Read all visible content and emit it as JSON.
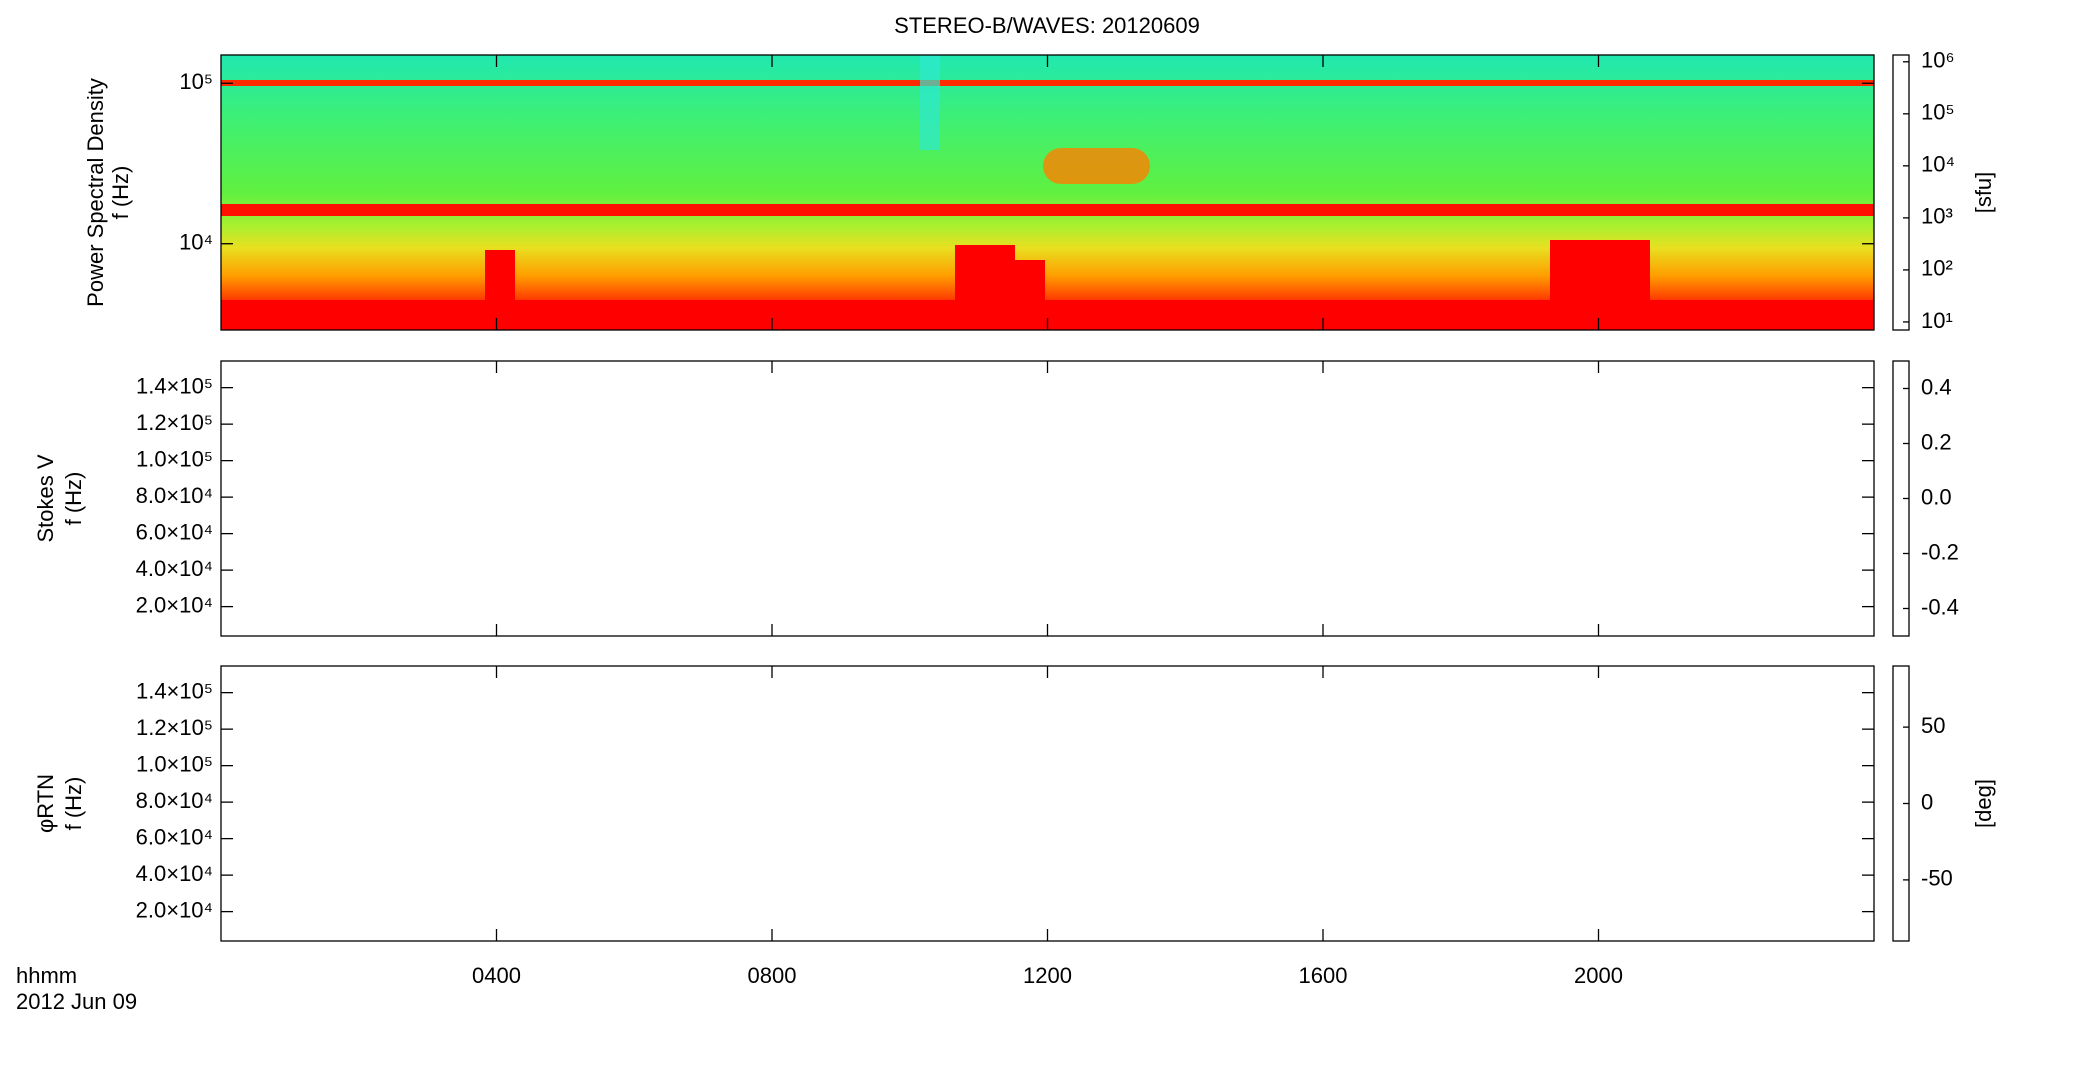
{
  "chart_data": [
    {
      "type": "heatmap",
      "title": "STEREO-B/WAVES: 20120609",
      "ylabel": [
        "Power Spectral Density",
        "f (Hz)"
      ],
      "ylog": true,
      "ylim": [
        2900,
        150000
      ],
      "yticks": [
        {
          "value": 10000,
          "label": "10⁴"
        },
        {
          "value": 100000,
          "label": "10⁵"
        }
      ],
      "colorbar": {
        "label": "[sfu]",
        "log": true,
        "clim": [
          7,
          1350000
        ],
        "ticks": [
          {
            "value": 10,
            "label": "10¹"
          },
          {
            "value": 100,
            "label": "10²"
          },
          {
            "value": 1000,
            "label": "10³"
          },
          {
            "value": 10000,
            "label": "10⁴"
          },
          {
            "value": 100000,
            "label": "10⁵"
          },
          {
            "value": 1000000,
            "label": "10⁶"
          }
        ]
      }
    },
    {
      "type": "heatmap",
      "ylabel": [
        "Stokes V",
        "f (Hz)"
      ],
      "ylog": false,
      "ylim": [
        3900,
        154600
      ],
      "yticks": [
        {
          "value": 20000,
          "label": "2.0×10⁴"
        },
        {
          "value": 40000,
          "label": "4.0×10⁴"
        },
        {
          "value": 60000,
          "label": "6.0×10⁴"
        },
        {
          "value": 80000,
          "label": "8.0×10⁴"
        },
        {
          "value": 100000,
          "label": "1.0×10⁵"
        },
        {
          "value": 120000,
          "label": "1.2×10⁵"
        },
        {
          "value": 140000,
          "label": "1.4×10⁵"
        }
      ],
      "colorbar": {
        "log": false,
        "clim": [
          -0.5,
          0.5
        ],
        "ticks": [
          {
            "value": -0.4,
            "label": "-0.4"
          },
          {
            "value": -0.2,
            "label": "-0.2"
          },
          {
            "value": 0,
            "label": "0.0"
          },
          {
            "value": 0.2,
            "label": "0.2"
          },
          {
            "value": 0.4,
            "label": "0.4"
          }
        ]
      }
    },
    {
      "type": "heatmap",
      "ylabel": [
        "φRTN",
        "f (Hz)"
      ],
      "ylog": false,
      "ylim": [
        3900,
        154600
      ],
      "yticks": [
        {
          "value": 20000,
          "label": "2.0×10⁴"
        },
        {
          "value": 40000,
          "label": "4.0×10⁴"
        },
        {
          "value": 60000,
          "label": "6.0×10⁴"
        },
        {
          "value": 80000,
          "label": "8.0×10⁴"
        },
        {
          "value": 100000,
          "label": "1.0×10⁵"
        },
        {
          "value": 120000,
          "label": "1.2×10⁵"
        },
        {
          "value": 140000,
          "label": "1.4×10⁵"
        }
      ],
      "colorbar": {
        "label": "[deg]",
        "log": false,
        "clim": [
          -90,
          90
        ],
        "ticks": [
          -50,
          0,
          50
        ]
      },
      "xlabel": "hhmm",
      "date": "2012 Jun 09",
      "xlim": [
        0,
        24
      ],
      "xticks": [
        {
          "value": 4,
          "label": "0400"
        },
        {
          "value": 8,
          "label": "0800"
        },
        {
          "value": 12,
          "label": "1200"
        },
        {
          "value": 16,
          "label": "1600"
        },
        {
          "value": 20,
          "label": "2000"
        }
      ]
    }
  ]
}
